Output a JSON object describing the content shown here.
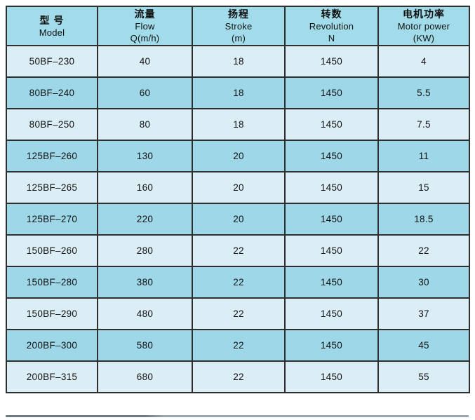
{
  "colors": {
    "header_bg": "#a2dbe9",
    "row_dark_bg": "#9ed8e8",
    "row_light_bg": "#dceef5",
    "border": "#2e2e2e",
    "text": "#111111",
    "shadow_line_dark": "#6e7a82",
    "shadow_line_light": "#9aa4aa"
  },
  "table": {
    "columns": [
      {
        "cn": "型 号",
        "en": "Model",
        "unit": ""
      },
      {
        "cn": "流量",
        "en": "Flow",
        "unit": "Q(m/h)"
      },
      {
        "cn": "扬程",
        "en": "Stroke",
        "unit": "(m)"
      },
      {
        "cn": "转数",
        "en": "Revolution",
        "unit": "N"
      },
      {
        "cn": "电机功率",
        "en": "Motor power",
        "unit": "(KW)"
      }
    ],
    "rows": [
      {
        "model": "50BF–230",
        "flow": "40",
        "stroke": "18",
        "revolution": "1450",
        "power": "4"
      },
      {
        "model": "80BF–240",
        "flow": "60",
        "stroke": "18",
        "revolution": "1450",
        "power": "5.5"
      },
      {
        "model": "80BF–250",
        "flow": "80",
        "stroke": "18",
        "revolution": "1450",
        "power": "7.5"
      },
      {
        "model": "125BF–260",
        "flow": "130",
        "stroke": "20",
        "revolution": "1450",
        "power": "11"
      },
      {
        "model": "125BF–265",
        "flow": "160",
        "stroke": "20",
        "revolution": "1450",
        "power": "15"
      },
      {
        "model": "125BF–270",
        "flow": "220",
        "stroke": "20",
        "revolution": "1450",
        "power": "18.5"
      },
      {
        "model": "150BF–260",
        "flow": "280",
        "stroke": "22",
        "revolution": "1450",
        "power": "22"
      },
      {
        "model": "150BF–280",
        "flow": "380",
        "stroke": "22",
        "revolution": "1450",
        "power": "30"
      },
      {
        "model": "150BF–290",
        "flow": "480",
        "stroke": "22",
        "revolution": "1450",
        "power": "37"
      },
      {
        "model": "200BF–300",
        "flow": "580",
        "stroke": "22",
        "revolution": "1450",
        "power": "45"
      },
      {
        "model": "200BF–315",
        "flow": "680",
        "stroke": "22",
        "revolution": "1450",
        "power": "55"
      }
    ]
  }
}
